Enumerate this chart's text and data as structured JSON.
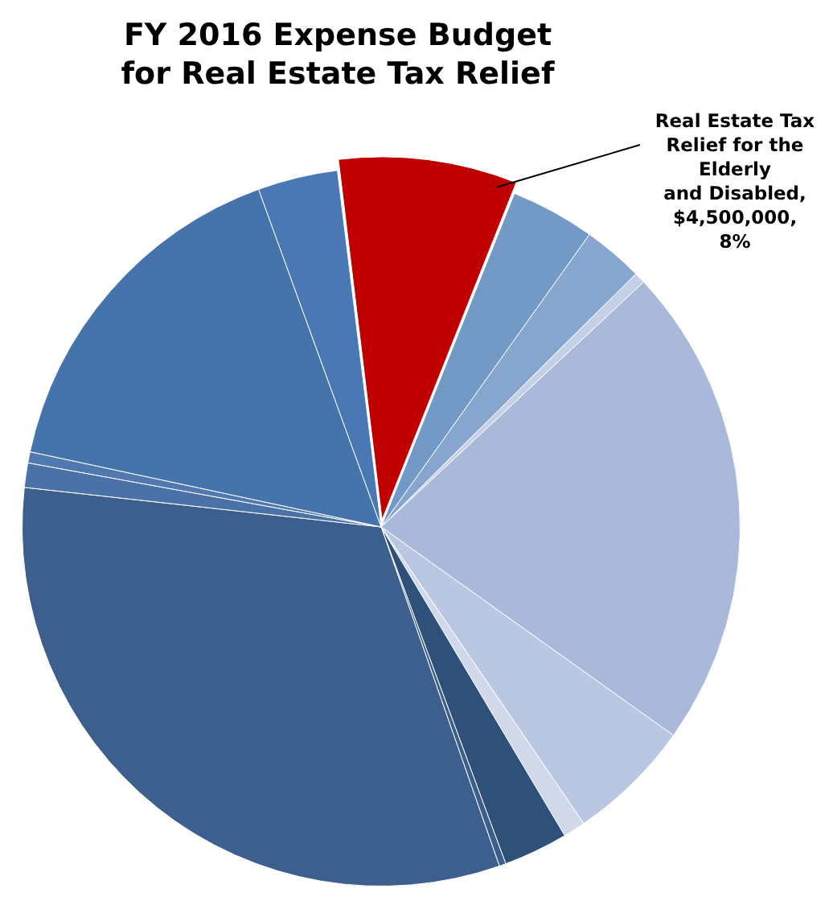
{
  "chart_data": {
    "type": "pie",
    "title": "FY 2016 Expense Budget for Real Estate Tax Relief",
    "categories": [
      null,
      null,
      null,
      null,
      null,
      null,
      null,
      null,
      null,
      null,
      null,
      null,
      null,
      null
    ],
    "values": [
      8,
      3.8,
      2.7,
      0.5,
      21.8,
      5.6,
      1,
      2.9,
      0.3,
      32.1,
      1.1,
      0.5,
      16.1,
      3.6
    ],
    "colors": [
      "#c00000",
      "#7399c6",
      "#86a5cf",
      "#c5d0e6",
      "#aab9d9",
      "#bac7e2",
      "#d0d8ea",
      "#2f5078",
      "#3a5f8e",
      "#3c5f8d",
      "#4a72a8",
      "#5079b0",
      "#4573ab",
      "#4a78b5"
    ],
    "annotations": [
      "Real Estate Tax\nRelief for the\nElderly\nand Disabled,\n$4,500,000,\n8%"
    ],
    "legend": false
  }
}
